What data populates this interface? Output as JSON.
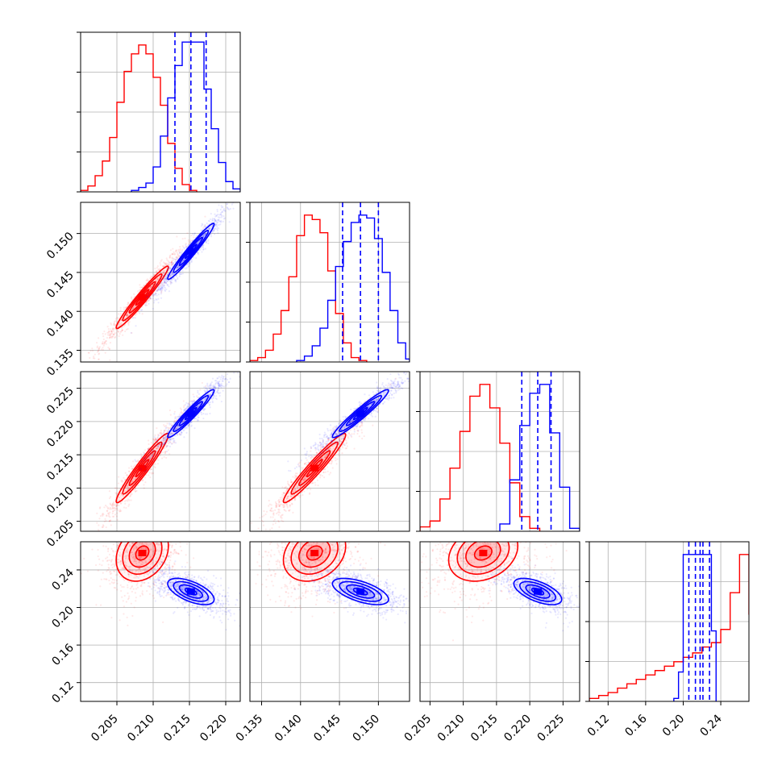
{
  "chart_data": {
    "type": "corner",
    "title": "",
    "parameters": [
      {
        "xlim": [
          0.2,
          0.222
        ],
        "ticks": [
          0.205,
          0.21,
          0.215,
          0.22
        ],
        "tick_labels": [
          "0.205",
          "0.210",
          "0.215",
          "0.220"
        ]
      },
      {
        "xlim": [
          0.1335,
          0.154
        ],
        "ticks": [
          0.135,
          0.14,
          0.145,
          0.15
        ],
        "tick_labels": [
          "0.135",
          "0.140",
          "0.145",
          "0.150"
        ]
      },
      {
        "xlim": [
          0.2035,
          0.2275
        ],
        "ticks": [
          0.205,
          0.21,
          0.215,
          0.22,
          0.225
        ],
        "tick_labels": [
          "0.205",
          "0.210",
          "0.215",
          "0.220",
          "0.225"
        ]
      },
      {
        "xlim": [
          0.1,
          0.27
        ],
        "ticks": [
          0.12,
          0.16,
          0.2,
          0.24
        ],
        "tick_labels": [
          "0.12",
          "0.16",
          "0.20",
          "0.24"
        ]
      }
    ],
    "series": [
      {
        "name": "",
        "color": "#ff0000",
        "means": [
          0.2085,
          0.1418,
          0.213,
          0.258
        ],
        "sigmas": [
          0.0018,
          0.002,
          0.0026,
          0.015
        ],
        "correlations": [
          [
            0,
            1,
            0.97
          ],
          [
            0,
            2,
            0.96
          ],
          [
            1,
            2,
            0.96
          ],
          [
            0,
            3,
            0.25
          ],
          [
            1,
            3,
            0.25
          ],
          [
            2,
            3,
            0.25
          ]
        ],
        "histograms": [
          [
            0.2,
            0.201,
            0.202,
            0.203,
            0.204,
            0.205,
            0.206,
            0.207,
            0.208,
            0.209,
            0.21,
            0.211,
            0.212,
            0.213,
            0.214,
            0.215,
            0.216
          ],
          [
            0.01,
            0.04,
            0.11,
            0.21,
            0.37,
            0.61,
            0.82,
            0.94,
            1.0,
            0.94,
            0.78,
            0.59,
            0.33,
            0.16,
            0.05,
            0.01
          ],
          [
            0.1335,
            0.1345,
            0.1355,
            0.1365,
            0.1375,
            0.1385,
            0.1395,
            0.1405,
            0.1415,
            0.1425,
            0.1435,
            0.1445,
            0.1455,
            0.1465,
            0.1475,
            0.1485
          ],
          [
            0.01,
            0.03,
            0.08,
            0.19,
            0.35,
            0.58,
            0.86,
            1.0,
            0.97,
            0.88,
            0.62,
            0.33,
            0.13,
            0.03,
            0.01
          ],
          [
            0.2035,
            0.205,
            0.2065,
            0.208,
            0.2095,
            0.211,
            0.2125,
            0.214,
            0.2155,
            0.217,
            0.2185,
            0.22,
            0.2215
          ],
          [
            0.03,
            0.07,
            0.22,
            0.43,
            0.68,
            0.92,
            1.0,
            0.84,
            0.6,
            0.33,
            0.1,
            0.02
          ],
          [
            0.1,
            0.11,
            0.12,
            0.13,
            0.14,
            0.15,
            0.16,
            0.17,
            0.18,
            0.19,
            0.2,
            0.21,
            0.22,
            0.23,
            0.24,
            0.25,
            0.26,
            0.27
          ],
          [
            0.02,
            0.04,
            0.06,
            0.09,
            0.12,
            0.15,
            0.18,
            0.21,
            0.24,
            0.27,
            0.3,
            0.33,
            0.37,
            0.4,
            0.49,
            0.74,
            1.0,
            0.59
          ]
        ]
      },
      {
        "name": "",
        "color": "#0000ff",
        "means": [
          0.2152,
          0.1477,
          0.2212,
          0.217
        ],
        "sigmas": [
          0.0016,
          0.0018,
          0.0018,
          0.007
        ],
        "correlations": [
          [
            0,
            1,
            0.97
          ],
          [
            0,
            2,
            0.96
          ],
          [
            1,
            2,
            0.96
          ],
          [
            0,
            3,
            -0.6
          ],
          [
            1,
            3,
            -0.6
          ],
          [
            2,
            3,
            -0.6
          ]
        ],
        "quantiles": [
          [
            0.213,
            0.2152,
            0.2173
          ],
          [
            0.1454,
            0.1477,
            0.15
          ],
          [
            0.2188,
            0.2212,
            0.2232
          ],
          [
            0.206,
            0.213,
            0.218,
            0.221,
            0.228
          ]
        ],
        "histograms": [
          [
            0.207,
            0.208,
            0.209,
            0.21,
            0.211,
            0.212,
            0.213,
            0.214,
            0.215,
            0.216,
            0.217,
            0.218,
            0.219,
            0.22,
            0.221,
            0.222
          ],
          [
            0.01,
            0.03,
            0.06,
            0.17,
            0.38,
            0.64,
            0.86,
            1.02,
            1.02,
            1.02,
            0.7,
            0.43,
            0.2,
            0.07,
            0.02
          ],
          [
            0.1395,
            0.1405,
            0.1415,
            0.1425,
            0.1435,
            0.1445,
            0.1455,
            0.1465,
            0.1475,
            0.1485,
            0.1495,
            0.1505,
            0.1515,
            0.1525,
            0.1535,
            0.154
          ],
          [
            0.01,
            0.04,
            0.11,
            0.23,
            0.42,
            0.65,
            0.82,
            0.95,
            1.0,
            0.98,
            0.84,
            0.61,
            0.35,
            0.13,
            0.02
          ],
          [
            0.2155,
            0.217,
            0.2185,
            0.22,
            0.2215,
            0.223,
            0.2245,
            0.226,
            0.2275
          ],
          [
            0.05,
            0.35,
            0.72,
            0.94,
            1.0,
            0.67,
            0.3,
            0.02
          ],
          [
            0.19,
            0.195,
            0.2,
            0.205,
            0.21,
            0.215,
            0.22,
            0.225,
            0.23,
            0.235
          ],
          [
            0.02,
            0.2,
            1.0,
            1.0,
            1.0,
            1.0,
            1.0,
            1.0,
            0.48
          ]
        ]
      }
    ]
  }
}
